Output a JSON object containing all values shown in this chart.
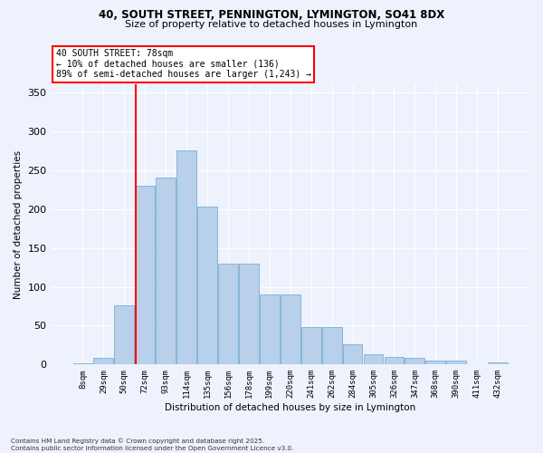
{
  "title_line1": "40, SOUTH STREET, PENNINGTON, LYMINGTON, SO41 8DX",
  "title_line2": "Size of property relative to detached houses in Lymington",
  "xlabel": "Distribution of detached houses by size in Lymington",
  "ylabel": "Number of detached properties",
  "categories": [
    "8sqm",
    "29sqm",
    "50sqm",
    "72sqm",
    "93sqm",
    "114sqm",
    "135sqm",
    "156sqm",
    "178sqm",
    "199sqm",
    "220sqm",
    "241sqm",
    "262sqm",
    "284sqm",
    "305sqm",
    "326sqm",
    "347sqm",
    "368sqm",
    "390sqm",
    "411sqm",
    "432sqm"
  ],
  "values": [
    2,
    8,
    76,
    230,
    240,
    275,
    203,
    130,
    130,
    90,
    90,
    48,
    48,
    26,
    13,
    10,
    8,
    5,
    5,
    0,
    3
  ],
  "bar_color": "#b8d0ea",
  "bar_edge_color": "#7aafd4",
  "bg_color": "#eef2fc",
  "grid_color": "#ffffff",
  "vline_color": "red",
  "vline_pos": 2.55,
  "annotation_text": "40 SOUTH STREET: 78sqm\n← 10% of detached houses are smaller (136)\n89% of semi-detached houses are larger (1,243) →",
  "annotation_box_color": "white",
  "annotation_box_edge_color": "red",
  "footnote": "Contains HM Land Registry data © Crown copyright and database right 2025.\nContains public sector information licensed under the Open Government Licence v3.0.",
  "ylim": [
    0,
    360
  ],
  "yticks": [
    0,
    50,
    100,
    150,
    200,
    250,
    300,
    350
  ]
}
